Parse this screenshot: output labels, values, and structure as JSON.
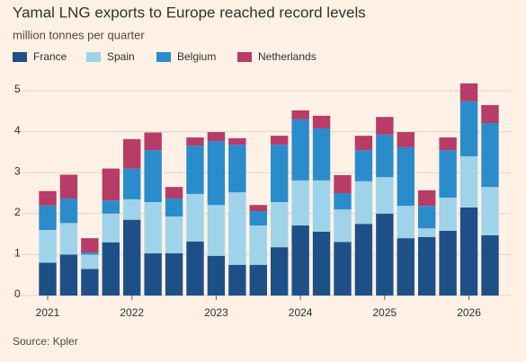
{
  "chart_data": {
    "type": "stacked-bar",
    "title": "Yamal LNG exports to Europe reached record levels",
    "subtitle": "million tonnes per quarter",
    "source": "Source: Kpler",
    "categories": [
      "2021",
      null,
      null,
      null,
      "2022",
      null,
      null,
      null,
      "2023",
      null,
      null,
      null,
      "2024",
      null,
      null,
      null,
      "2025",
      null,
      null,
      null,
      "2026",
      null
    ],
    "series": [
      {
        "name": "France",
        "color": "#1e5088",
        "values": [
          0.8,
          1.0,
          0.65,
          1.3,
          1.85,
          1.03,
          1.03,
          1.32,
          0.97,
          0.75,
          0.75,
          1.18,
          1.71,
          1.56,
          1.31,
          1.75,
          2.0,
          1.4,
          1.43,
          1.58,
          2.15,
          1.47
        ]
      },
      {
        "name": "Spain",
        "color": "#9fd3e9",
        "values": [
          0.8,
          0.77,
          0.35,
          0.7,
          0.5,
          1.25,
          0.9,
          1.16,
          1.24,
          1.77,
          0.96,
          1.1,
          1.1,
          1.25,
          0.79,
          1.04,
          0.89,
          0.79,
          0.21,
          0.81,
          1.25,
          1.18
        ]
      },
      {
        "name": "Belgium",
        "color": "#2a8ccb",
        "values": [
          0.6,
          0.6,
          0.05,
          0.32,
          0.75,
          1.27,
          0.44,
          1.18,
          1.56,
          1.16,
          0.35,
          1.4,
          1.49,
          1.27,
          0.4,
          0.76,
          1.04,
          1.43,
          0.55,
          1.16,
          1.34,
          1.56
        ]
      },
      {
        "name": "Netherlands",
        "color": "#b73c68",
        "values": [
          0.35,
          0.58,
          0.35,
          0.78,
          0.72,
          0.43,
          0.28,
          0.2,
          0.22,
          0.16,
          0.15,
          0.22,
          0.22,
          0.31,
          0.44,
          0.35,
          0.43,
          0.37,
          0.38,
          0.31,
          0.44,
          0.44
        ]
      }
    ],
    "ylim": [
      0,
      5.5
    ],
    "yticks": [
      0,
      1,
      2,
      3,
      4,
      5
    ],
    "grid": true
  }
}
